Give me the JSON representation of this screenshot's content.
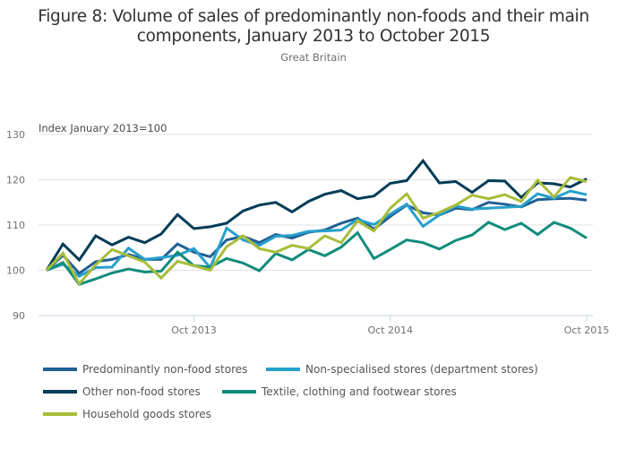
{
  "chart_data": {
    "type": "line",
    "title": "Figure 8: Volume of sales of predominantly non-foods and their main components, January 2013 to October 2015",
    "subtitle": "Great Britain",
    "xlabel": "",
    "ylabel": "Index January 2013=100",
    "ylim": [
      90,
      130
    ],
    "yticks": [
      90,
      100,
      110,
      120,
      130
    ],
    "ytick_labels": [
      "90",
      "100",
      "110",
      "120",
      "130"
    ],
    "x_start": "Jan 2013",
    "x_end": "Oct 2015",
    "n_months": 34,
    "xticks": [
      {
        "index": 9,
        "label": "Oct 2013"
      },
      {
        "index": 21,
        "label": "Oct 2014"
      },
      {
        "index": 33,
        "label": "Oct 2015"
      }
    ],
    "grid": "horizontal",
    "legend_position": "bottom",
    "series": [
      {
        "name": "Predominantly non-food stores",
        "color": "#206095",
        "values": [
          100,
          103.3,
          99.3,
          101.9,
          102.4,
          103.5,
          102.4,
          102.4,
          105.8,
          104.0,
          103.0,
          106.7,
          107.5,
          106.1,
          107.9,
          107.1,
          108.4,
          108.9,
          110.4,
          111.5,
          109.1,
          111.9,
          114.4,
          112.7,
          112.2,
          113.7,
          113.4,
          115.0,
          114.6,
          114.0,
          115.6,
          115.8,
          115.9,
          115.5
        ]
      },
      {
        "name": "Non-specialised stores (department stores)",
        "color": "#27a0cc",
        "values": [
          100,
          101.3,
          98.7,
          100.6,
          100.7,
          104.9,
          102.4,
          102.8,
          103.3,
          104.8,
          100.6,
          109.3,
          106.7,
          105.5,
          107.5,
          107.7,
          108.6,
          108.7,
          108.9,
          111.2,
          110.1,
          112.4,
          114.6,
          109.7,
          112.2,
          114.2,
          113.5,
          113.7,
          113.9,
          114.1,
          116.9,
          115.9,
          117.5,
          116.7
        ]
      },
      {
        "name": "Other non-food stores",
        "color": "#003c57",
        "values": [
          100,
          105.8,
          102.3,
          107.6,
          105.6,
          107.3,
          106.1,
          108.0,
          112.3,
          109.2,
          109.6,
          110.4,
          113.1,
          114.4,
          115.0,
          112.9,
          115.2,
          116.8,
          117.6,
          115.8,
          116.4,
          119.2,
          119.8,
          124.2,
          119.3,
          119.6,
          117.2,
          119.8,
          119.7,
          116.1,
          119.3,
          119.1,
          118.4,
          120.2
        ]
      },
      {
        "name": "Textile, clothing and footwear stores",
        "color": "#118c7b",
        "values": [
          100,
          101.7,
          96.9,
          98.1,
          99.4,
          100.3,
          99.6,
          99.8,
          104.0,
          101.0,
          100.7,
          102.6,
          101.6,
          99.9,
          103.7,
          102.3,
          104.6,
          103.2,
          105.1,
          108.3,
          102.6,
          104.6,
          106.7,
          106.1,
          104.7,
          106.6,
          107.8,
          110.6,
          109.0,
          110.4,
          107.9,
          110.6,
          109.3,
          107.1
        ]
      },
      {
        "name": "Household goods stores",
        "color": "#a8bd3a",
        "values": [
          100,
          103.8,
          97.0,
          101.2,
          104.6,
          103.2,
          101.8,
          98.3,
          102.0,
          101.0,
          100.0,
          105.2,
          107.6,
          104.8,
          104.0,
          105.5,
          104.8,
          107.6,
          106.1,
          110.9,
          108.7,
          113.7,
          116.9,
          111.5,
          112.8,
          114.4,
          116.6,
          115.8,
          116.7,
          115.2,
          119.9,
          116.2,
          120.5,
          119.6
        ]
      }
    ]
  },
  "legend": {
    "items": [
      {
        "label": "Predominantly non-food stores",
        "color": "#206095"
      },
      {
        "label": "Non-specialised stores (department stores)",
        "color": "#27a0cc"
      },
      {
        "label": "Other non-food stores",
        "color": "#003c57"
      },
      {
        "label": "Textile, clothing and footwear stores",
        "color": "#118c7b"
      },
      {
        "label": "Household goods stores",
        "color": "#a8bd3a"
      }
    ]
  }
}
